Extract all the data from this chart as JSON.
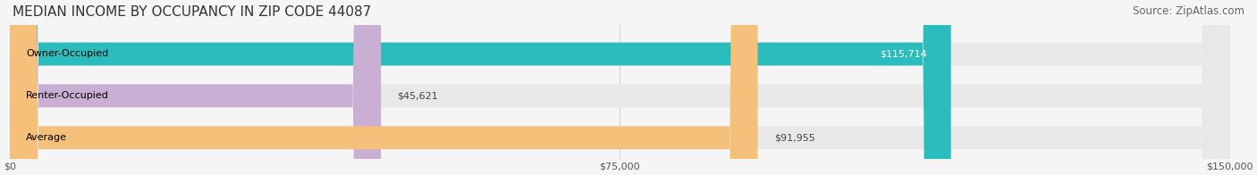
{
  "title": "MEDIAN INCOME BY OCCUPANCY IN ZIP CODE 44087",
  "source": "Source: ZipAtlas.com",
  "categories": [
    "Owner-Occupied",
    "Renter-Occupied",
    "Average"
  ],
  "values": [
    115714,
    45621,
    91955
  ],
  "bar_colors": [
    "#2bbcbe",
    "#c9afd4",
    "#f5c07a"
  ],
  "label_colors": [
    "#ffffff",
    "#555555",
    "#555555"
  ],
  "value_labels": [
    "$115,714",
    "$45,621",
    "$91,955"
  ],
  "xlim": [
    0,
    150000
  ],
  "xticks": [
    0,
    75000,
    150000
  ],
  "xticklabels": [
    "$0",
    "$75,000",
    "$150,000"
  ],
  "background_color": "#f5f5f5",
  "bar_background_color": "#e8e8e8",
  "title_fontsize": 11,
  "source_fontsize": 8.5,
  "label_fontsize": 8,
  "value_fontsize": 8
}
